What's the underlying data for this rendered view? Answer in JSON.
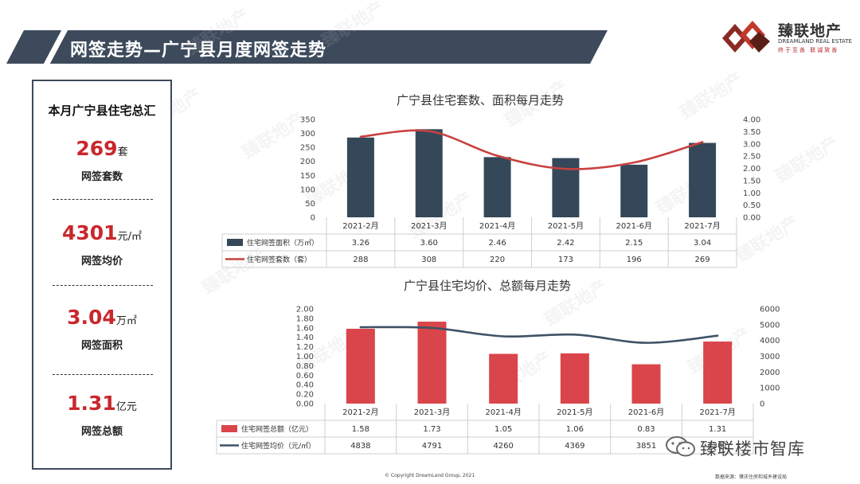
{
  "header": {
    "title": "网签走势—广宁县月度网签走势"
  },
  "logo": {
    "name_cn": "臻联地产",
    "name_en": "DREAMLAND REAL ESTATE",
    "slogan": "终于至善 联诚致善"
  },
  "summary": {
    "title": "本月广宁县住宅总汇",
    "stats": [
      {
        "value": "269",
        "unit": "套",
        "label": "网签套数"
      },
      {
        "value": "4301",
        "unit": "元/㎡",
        "label": "网签均价"
      },
      {
        "value": "3.04",
        "unit": "万㎡",
        "label": "网签面积"
      },
      {
        "value": "1.31",
        "unit": "亿元",
        "label": "网签总额"
      }
    ]
  },
  "chart_data": [
    {
      "type": "bar",
      "title": "广宁县住宅套数、面积每月走势",
      "categories": [
        "2021-2月",
        "2021-3月",
        "2021-4月",
        "2021-5月",
        "2021-6月",
        "2021-7月"
      ],
      "series": [
        {
          "name": "住宅网签面积（万㎡）",
          "type": "bar",
          "axis": "right",
          "color": "#34485a",
          "values": [
            3.26,
            3.6,
            2.46,
            2.42,
            2.15,
            3.04
          ]
        },
        {
          "name": "住宅网签套数（套）",
          "type": "line",
          "axis": "left",
          "color": "#c94040",
          "values": [
            288,
            308,
            220,
            173,
            196,
            269
          ]
        }
      ],
      "left_axis": {
        "ticks": [
          "0",
          "50",
          "100",
          "150",
          "200",
          "250",
          "300",
          "350"
        ]
      },
      "right_axis": {
        "ticks": [
          "0.00",
          "0.50",
          "1.00",
          "1.50",
          "2.00",
          "2.50",
          "3.00",
          "3.50",
          "4.00"
        ]
      },
      "ylim_left": [
        0,
        350
      ],
      "ylim_right": [
        0,
        4
      ],
      "legend": "data-table"
    },
    {
      "type": "bar",
      "title": "广宁县住宅均价、总额每月走势",
      "categories": [
        "2021-2月",
        "2021-3月",
        "2021-4月",
        "2021-5月",
        "2021-6月",
        "2021-7月"
      ],
      "series": [
        {
          "name": "住宅网签总额（亿元）",
          "type": "bar",
          "axis": "left",
          "color": "#d9454a",
          "values": [
            1.58,
            1.73,
            1.05,
            1.06,
            0.83,
            1.31
          ]
        },
        {
          "name": "住宅网签均价（元/㎡）",
          "type": "line",
          "axis": "right",
          "color": "#3e5266",
          "values": [
            4838,
            4791,
            4260,
            4369,
            3851,
            4301
          ]
        }
      ],
      "left_axis": {
        "ticks": [
          "0.00",
          "0.20",
          "0.40",
          "0.60",
          "0.80",
          "1.00",
          "1.20",
          "1.40",
          "1.60",
          "1.80",
          "2.00"
        ]
      },
      "right_axis": {
        "ticks": [
          "0",
          "1000",
          "2000",
          "3000",
          "4000",
          "5000",
          "6000"
        ]
      },
      "ylim_left": [
        0,
        2
      ],
      "ylim_right": [
        0,
        6000
      ],
      "legend": "data-table"
    }
  ],
  "watermark_text": "臻联地产",
  "wechat": {
    "label": "臻联楼市智库"
  },
  "footer": {
    "copyright": "© Copyright DreamLand Group, 2021",
    "source": "数据来源：肇庆住房和城乡建设局"
  }
}
